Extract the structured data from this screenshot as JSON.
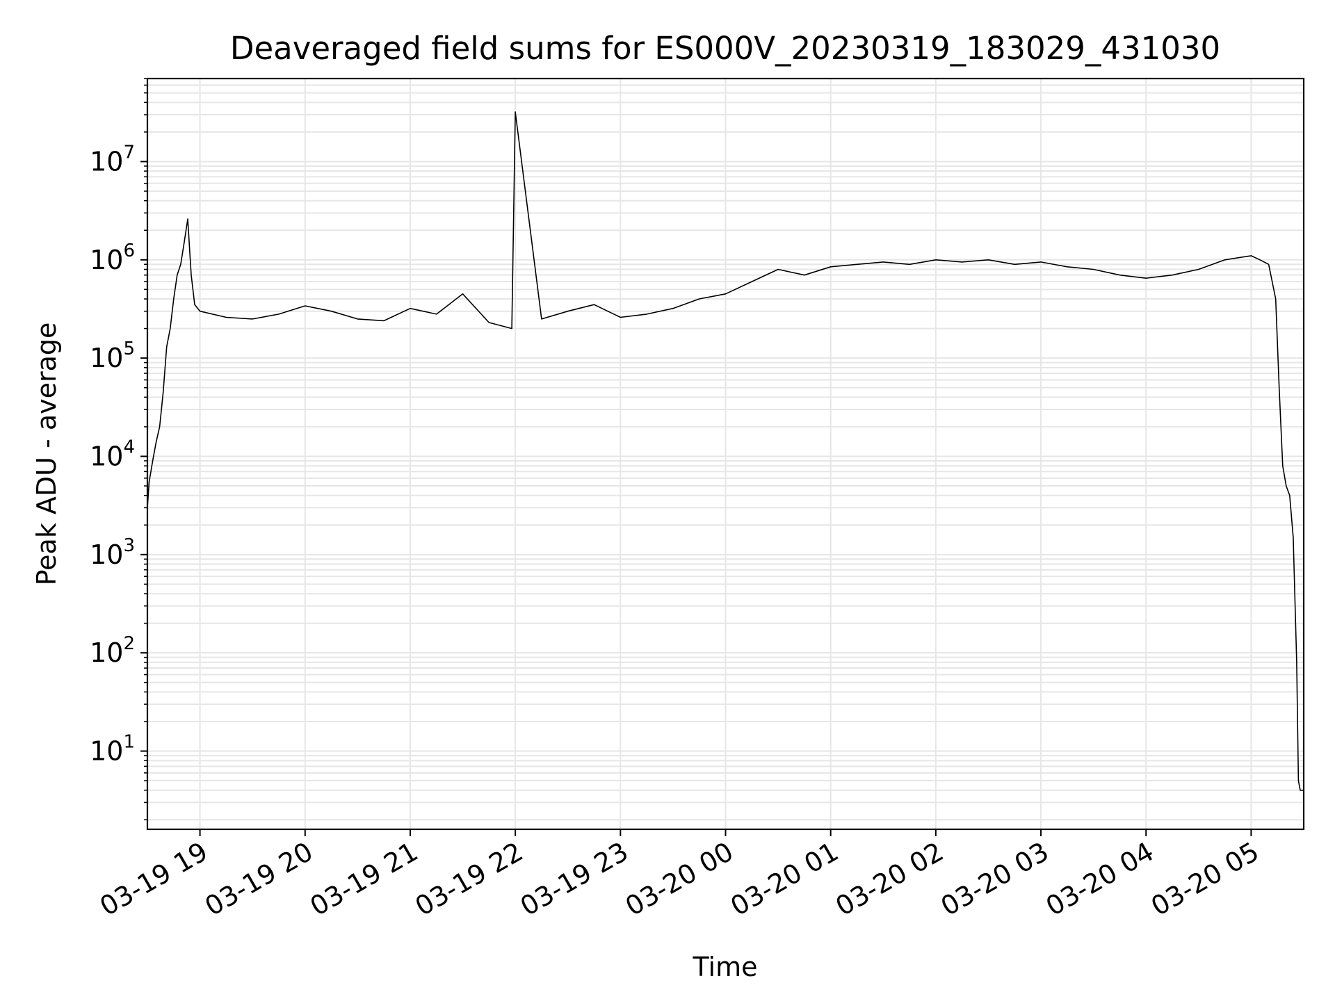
{
  "chart_data": {
    "type": "line",
    "title": "Deaveraged field sums for ES000V_20230319_183029_431030",
    "xlabel": "Time",
    "ylabel": "Peak ADU - average",
    "yscale": "log",
    "grid": "major-and-minor",
    "line_color": "#000000",
    "grid_color": "#e6e6e6",
    "xlim": [
      "2023-03-19 18:30",
      "2023-03-20 05:30"
    ],
    "ylim": [
      1.6,
      70000000
    ],
    "x_ticks": [
      {
        "value": "2023-03-19 19:00",
        "label": "03-19 19"
      },
      {
        "value": "2023-03-19 20:00",
        "label": "03-19 20"
      },
      {
        "value": "2023-03-19 21:00",
        "label": "03-19 21"
      },
      {
        "value": "2023-03-19 22:00",
        "label": "03-19 22"
      },
      {
        "value": "2023-03-19 23:00",
        "label": "03-19 23"
      },
      {
        "value": "2023-03-20 00:00",
        "label": "03-20 00"
      },
      {
        "value": "2023-03-20 01:00",
        "label": "03-20 01"
      },
      {
        "value": "2023-03-20 02:00",
        "label": "03-20 02"
      },
      {
        "value": "2023-03-20 03:00",
        "label": "03-20 03"
      },
      {
        "value": "2023-03-20 04:00",
        "label": "03-20 04"
      },
      {
        "value": "2023-03-20 05:00",
        "label": "03-20 05"
      }
    ],
    "y_ticks": [
      {
        "value": 10,
        "base": "10",
        "exp": "1"
      },
      {
        "value": 100,
        "base": "10",
        "exp": "2"
      },
      {
        "value": 1000,
        "base": "10",
        "exp": "3"
      },
      {
        "value": 10000,
        "base": "10",
        "exp": "4"
      },
      {
        "value": 100000,
        "base": "10",
        "exp": "5"
      },
      {
        "value": 1000000,
        "base": "10",
        "exp": "6"
      },
      {
        "value": 10000000,
        "base": "10",
        "exp": "7"
      }
    ],
    "series": [
      {
        "x": [
          "2023-03-19 18:30",
          "2023-03-19 18:31",
          "2023-03-19 18:33",
          "2023-03-19 18:35",
          "2023-03-19 18:37",
          "2023-03-19 18:39",
          "2023-03-19 18:41",
          "2023-03-19 18:43",
          "2023-03-19 18:45",
          "2023-03-19 18:47",
          "2023-03-19 18:49",
          "2023-03-19 18:51",
          "2023-03-19 18:53",
          "2023-03-19 18:55",
          "2023-03-19 18:57",
          "2023-03-19 19:00",
          "2023-03-19 19:15",
          "2023-03-19 19:30",
          "2023-03-19 19:45",
          "2023-03-19 20:00",
          "2023-03-19 20:15",
          "2023-03-19 20:30",
          "2023-03-19 20:45",
          "2023-03-19 21:00",
          "2023-03-19 21:15",
          "2023-03-19 21:30",
          "2023-03-19 21:45",
          "2023-03-19 21:58",
          "2023-03-19 22:00",
          "2023-03-19 22:15",
          "2023-03-19 22:30",
          "2023-03-19 22:45",
          "2023-03-19 23:00",
          "2023-03-19 23:15",
          "2023-03-19 23:30",
          "2023-03-19 23:45",
          "2023-03-20 00:00",
          "2023-03-20 00:15",
          "2023-03-20 00:30",
          "2023-03-20 00:45",
          "2023-03-20 01:00",
          "2023-03-20 01:15",
          "2023-03-20 01:30",
          "2023-03-20 01:45",
          "2023-03-20 02:00",
          "2023-03-20 02:15",
          "2023-03-20 02:30",
          "2023-03-20 02:45",
          "2023-03-20 03:00",
          "2023-03-20 03:15",
          "2023-03-20 03:30",
          "2023-03-20 03:45",
          "2023-03-20 04:00",
          "2023-03-20 04:15",
          "2023-03-20 04:30",
          "2023-03-20 04:45",
          "2023-03-20 05:00",
          "2023-03-20 05:05",
          "2023-03-20 05:10",
          "2023-03-20 05:14",
          "2023-03-20 05:16",
          "2023-03-20 05:18",
          "2023-03-20 05:20",
          "2023-03-20 05:22",
          "2023-03-20 05:24",
          "2023-03-20 05:26",
          "2023-03-20 05:27",
          "2023-03-20 05:28",
          "2023-03-20 05:29",
          "2023-03-20 05:30"
        ],
        "y": [
          3000,
          5500,
          9000,
          14000,
          20000,
          45000,
          130000,
          200000,
          400000,
          700000,
          900000,
          1500000,
          2600000,
          700000,
          350000,
          300000,
          260000,
          250000,
          280000,
          340000,
          300000,
          250000,
          240000,
          320000,
          280000,
          450000,
          230000,
          200000,
          32000000,
          250000,
          300000,
          350000,
          260000,
          280000,
          320000,
          400000,
          450000,
          600000,
          800000,
          700000,
          850000,
          900000,
          950000,
          900000,
          1000000,
          950000,
          1000000,
          900000,
          950000,
          850000,
          800000,
          700000,
          650000,
          700000,
          800000,
          1000000,
          1100000,
          1000000,
          900000,
          400000,
          50000,
          8000,
          5000,
          4000,
          1500,
          80,
          5,
          4,
          4,
          4
        ]
      }
    ]
  }
}
